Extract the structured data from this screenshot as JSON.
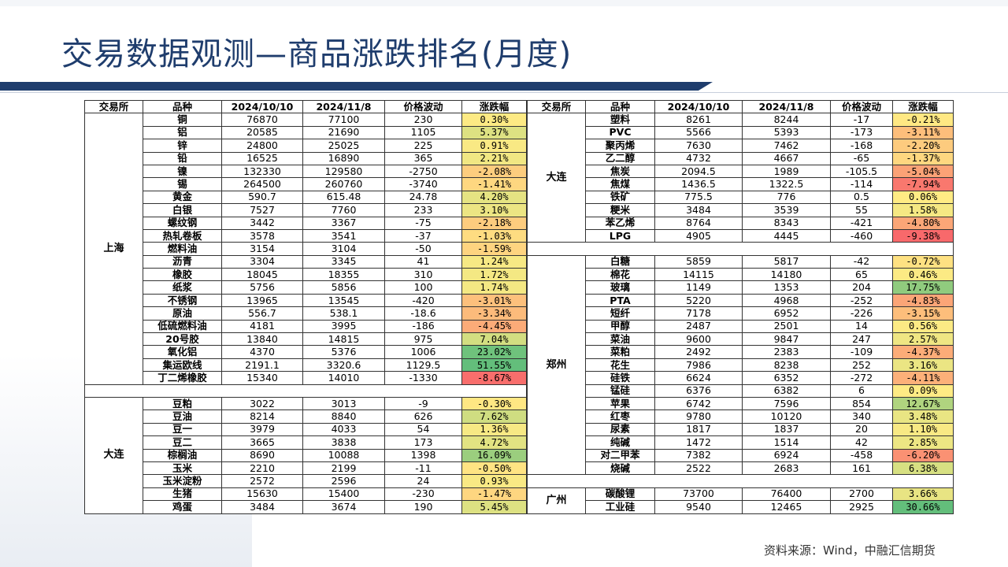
{
  "title": "交易数据观测—商品涨跌排名(月度)",
  "footer": "资料来源：Wind，中融汇信期货",
  "headers": [
    "交易所",
    "品种",
    "2024/10/10",
    "2024/11/8",
    "价格波动",
    "涨跌幅"
  ],
  "colors": {
    "title": "#1f3d6d",
    "strong_red": "#f8696b",
    "strong_green": "#63be7b",
    "neutral_yellow": "#ffeb84"
  },
  "left_groups": [
    {
      "exchange": "上海",
      "rows": [
        [
          "铜",
          "76870",
          "77100",
          "230",
          "0.30%"
        ],
        [
          "铝",
          "20585",
          "21690",
          "1105",
          "5.37%"
        ],
        [
          "锌",
          "24800",
          "25025",
          "225",
          "0.91%"
        ],
        [
          "铅",
          "16525",
          "16890",
          "365",
          "2.21%"
        ],
        [
          "镍",
          "132330",
          "129580",
          "-2750",
          "-2.08%"
        ],
        [
          "锡",
          "264500",
          "260760",
          "-3740",
          "-1.41%"
        ],
        [
          "黄金",
          "590.7",
          "615.48",
          "24.78",
          "4.20%"
        ],
        [
          "白银",
          "7527",
          "7760",
          "233",
          "3.10%"
        ],
        [
          "螺纹钢",
          "3442",
          "3367",
          "-75",
          "-2.18%"
        ],
        [
          "热轧卷板",
          "3578",
          "3541",
          "-37",
          "-1.03%"
        ],
        [
          "燃料油",
          "3154",
          "3104",
          "-50",
          "-1.59%"
        ],
        [
          "沥青",
          "3304",
          "3345",
          "41",
          "1.24%"
        ],
        [
          "橡胶",
          "18045",
          "18355",
          "310",
          "1.72%"
        ],
        [
          "纸浆",
          "5756",
          "5856",
          "100",
          "1.74%"
        ],
        [
          "不锈钢",
          "13965",
          "13545",
          "-420",
          "-3.01%"
        ],
        [
          "原油",
          "556.7",
          "538.1",
          "-18.6",
          "-3.34%"
        ],
        [
          "低硫燃料油",
          "4181",
          "3995",
          "-186",
          "-4.45%"
        ],
        [
          "20号胶",
          "13840",
          "14815",
          "975",
          "7.04%"
        ],
        [
          "氧化铝",
          "4370",
          "5376",
          "1006",
          "23.02%"
        ],
        [
          "集运欧线",
          "2191.1",
          "3320.6",
          "1129.5",
          "51.55%"
        ],
        [
          "丁二烯橡胶",
          "15340",
          "14010",
          "-1330",
          "-8.67%"
        ]
      ]
    },
    {
      "exchange": "大连",
      "rows": [
        [
          "豆粕",
          "3022",
          "3013",
          "-9",
          "-0.30%"
        ],
        [
          "豆油",
          "8214",
          "8840",
          "626",
          "7.62%"
        ],
        [
          "豆一",
          "3979",
          "4033",
          "54",
          "1.36%"
        ],
        [
          "豆二",
          "3665",
          "3838",
          "173",
          "4.72%"
        ],
        [
          "棕榈油",
          "8690",
          "10088",
          "1398",
          "16.09%"
        ],
        [
          "玉米",
          "2210",
          "2199",
          "-11",
          "-0.50%"
        ],
        [
          "玉米淀粉",
          "2572",
          "2596",
          "24",
          "0.93%"
        ],
        [
          "生猪",
          "15630",
          "15400",
          "-230",
          "-1.47%"
        ],
        [
          "鸡蛋",
          "3484",
          "3674",
          "190",
          "5.45%"
        ]
      ]
    }
  ],
  "right_groups": [
    {
      "exchange": "大连",
      "rows": [
        [
          "塑料",
          "8261",
          "8244",
          "-17",
          "-0.21%"
        ],
        [
          "PVC",
          "5566",
          "5393",
          "-173",
          "-3.11%"
        ],
        [
          "聚丙烯",
          "7630",
          "7462",
          "-168",
          "-2.20%"
        ],
        [
          "乙二醇",
          "4732",
          "4667",
          "-65",
          "-1.37%"
        ],
        [
          "焦炭",
          "2094.5",
          "1989",
          "-105.5",
          "-5.04%"
        ],
        [
          "焦煤",
          "1436.5",
          "1322.5",
          "-114",
          "-7.94%"
        ],
        [
          "铁矿",
          "775.5",
          "776",
          "0.5",
          "0.06%"
        ],
        [
          "粳米",
          "3484",
          "3539",
          "55",
          "1.58%"
        ],
        [
          "苯乙烯",
          "8764",
          "8343",
          "-421",
          "-4.80%"
        ],
        [
          "LPG",
          "4905",
          "4445",
          "-460",
          "-9.38%"
        ]
      ]
    },
    {
      "exchange": "郑州",
      "rows": [
        [
          "白糖",
          "5859",
          "5817",
          "-42",
          "-0.72%"
        ],
        [
          "棉花",
          "14115",
          "14180",
          "65",
          "0.46%"
        ],
        [
          "玻璃",
          "1149",
          "1353",
          "204",
          "17.75%"
        ],
        [
          "PTA",
          "5220",
          "4968",
          "-252",
          "-4.83%"
        ],
        [
          "短纤",
          "7178",
          "6952",
          "-226",
          "-3.15%"
        ],
        [
          "甲醇",
          "2487",
          "2501",
          "14",
          "0.56%"
        ],
        [
          "菜油",
          "9600",
          "9847",
          "247",
          "2.57%"
        ],
        [
          "菜粕",
          "2492",
          "2383",
          "-109",
          "-4.37%"
        ],
        [
          "花生",
          "7986",
          "8238",
          "252",
          "3.16%"
        ],
        [
          "硅铁",
          "6624",
          "6352",
          "-272",
          "-4.11%"
        ],
        [
          "锰硅",
          "6376",
          "6382",
          "6",
          "0.09%"
        ],
        [
          "苹果",
          "6742",
          "7596",
          "854",
          "12.67%"
        ],
        [
          "红枣",
          "9780",
          "10120",
          "340",
          "3.48%"
        ],
        [
          "尿素",
          "1817",
          "1837",
          "20",
          "1.10%"
        ],
        [
          "纯碱",
          "1472",
          "1514",
          "42",
          "2.85%"
        ],
        [
          "对二甲苯",
          "7382",
          "6924",
          "-458",
          "-6.20%"
        ],
        [
          "烧碱",
          "2522",
          "2683",
          "161",
          "6.38%"
        ]
      ]
    },
    {
      "exchange": "广州",
      "rows": [
        [
          "碳酸锂",
          "73700",
          "76400",
          "2700",
          "3.66%"
        ],
        [
          "工业硅",
          "9540",
          "12465",
          "2925",
          "30.66%"
        ]
      ]
    }
  ]
}
